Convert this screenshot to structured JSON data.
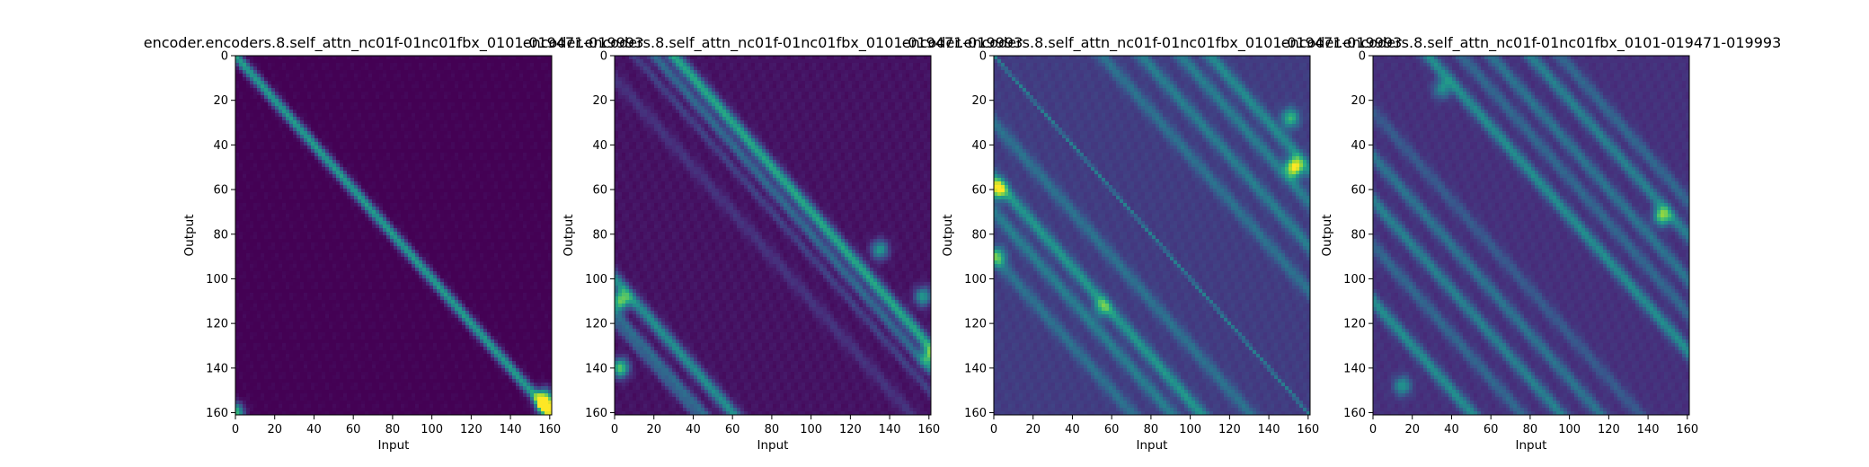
{
  "chart_data": [
    {
      "type": "heatmap",
      "title": "encoder.encoders.8.self_attn_nc01f-01nc01fbx_0101-019471-019993",
      "xlabel": "Input",
      "ylabel": "Output",
      "xlim": [
        0,
        161
      ],
      "ylim": [
        161,
        0
      ],
      "xticks": [
        "0",
        "20",
        "40",
        "60",
        "80",
        "100",
        "120",
        "140",
        "160"
      ],
      "yticks": [
        "0",
        "20",
        "40",
        "60",
        "80",
        "100",
        "120",
        "140",
        "160"
      ],
      "colormap": "viridis",
      "pattern": {
        "background": 0.0,
        "bands": [
          {
            "offset": 0,
            "weight": 0.55,
            "width": 2.5
          }
        ],
        "hotspots": [
          {
            "x": 158,
            "y": 157,
            "w": 0.9
          },
          {
            "x": 157,
            "y": 153,
            "w": 0.6
          },
          {
            "x": 0,
            "y": 160,
            "w": 0.7
          }
        ]
      }
    },
    {
      "type": "heatmap",
      "title": "encoder.encoders.8.self_attn_nc01f-01nc01fbx_0101-019471-019993",
      "xlabel": "Input",
      "ylabel": "Output",
      "xlim": [
        0,
        161
      ],
      "ylim": [
        161,
        0
      ],
      "xticks": [
        "0",
        "20",
        "40",
        "60",
        "80",
        "100",
        "120",
        "140",
        "160"
      ],
      "yticks": [
        "0",
        "20",
        "40",
        "60",
        "80",
        "100",
        "120",
        "140",
        "160"
      ],
      "colormap": "viridis",
      "pattern": {
        "background": 0.05,
        "bands": [
          {
            "offset": 30,
            "weight": 0.55,
            "width": 3
          },
          {
            "offset": 20,
            "weight": 0.3,
            "width": 2.5
          },
          {
            "offset": 10,
            "weight": 0.15,
            "width": 2
          },
          {
            "offset": -100,
            "weight": 0.45,
            "width": 3
          },
          {
            "offset": -115,
            "weight": 0.3,
            "width": 2.5
          },
          {
            "offset": -120,
            "weight": 0.2,
            "width": 2
          },
          {
            "offset": -10,
            "weight": 0.1,
            "width": 3
          }
        ],
        "hotspots": [
          {
            "x": 3,
            "y": 110,
            "w": 0.7
          },
          {
            "x": 3,
            "y": 140,
            "w": 0.7
          },
          {
            "x": 135,
            "y": 87,
            "w": 0.5
          },
          {
            "x": 157,
            "y": 108,
            "w": 0.5
          },
          {
            "x": 160,
            "y": 135,
            "w": 0.5
          }
        ]
      }
    },
    {
      "type": "heatmap",
      "title": "encoder.encoders.8.self_attn_nc01f-01nc01fbx_0101-019471-019993",
      "xlabel": "Input",
      "ylabel": "Output",
      "xlim": [
        0,
        161
      ],
      "ylim": [
        161,
        0
      ],
      "xticks": [
        "0",
        "20",
        "40",
        "60",
        "80",
        "100",
        "120",
        "140",
        "160"
      ],
      "yticks": [
        "0",
        "20",
        "40",
        "60",
        "80",
        "100",
        "120",
        "140",
        "160"
      ],
      "colormap": "viridis",
      "pattern": {
        "background": 0.18,
        "bands": [
          {
            "offset": 0,
            "weight": 0.25,
            "width": 0.8
          },
          {
            "offset": 110,
            "weight": 0.3,
            "width": 3
          },
          {
            "offset": 95,
            "weight": 0.25,
            "width": 3
          },
          {
            "offset": 75,
            "weight": 0.25,
            "width": 3
          },
          {
            "offset": 55,
            "weight": 0.2,
            "width": 3
          },
          {
            "offset": -55,
            "weight": 0.35,
            "width": 3
          },
          {
            "offset": -70,
            "weight": 0.25,
            "width": 3
          },
          {
            "offset": -30,
            "weight": 0.2,
            "width": 3
          },
          {
            "offset": -90,
            "weight": 0.2,
            "width": 3
          }
        ],
        "hotspots": [
          {
            "x": 2,
            "y": 60,
            "w": 0.7
          },
          {
            "x": 153,
            "y": 50,
            "w": 0.85
          },
          {
            "x": 151,
            "y": 28,
            "w": 0.5
          },
          {
            "x": 55,
            "y": 113,
            "w": 0.35
          },
          {
            "x": 2,
            "y": 90,
            "w": 0.45
          }
        ]
      }
    },
    {
      "type": "heatmap",
      "title": "encoder.encoders.8.self_attn_nc01f-01nc01fbx_0101-019471-019993",
      "xlabel": "Input",
      "ylabel": "Output",
      "xlim": [
        0,
        161
      ],
      "ylim": [
        161,
        0
      ],
      "xticks": [
        "0",
        "20",
        "40",
        "60",
        "80",
        "100",
        "120",
        "140",
        "160"
      ],
      "yticks": [
        "0",
        "20",
        "40",
        "60",
        "80",
        "100",
        "120",
        "140",
        "160"
      ],
      "colormap": "viridis",
      "pattern": {
        "background": 0.14,
        "bands": [
          {
            "offset": 28,
            "weight": 0.35,
            "width": 3
          },
          {
            "offset": 60,
            "weight": 0.25,
            "width": 3
          },
          {
            "offset": 80,
            "weight": 0.3,
            "width": 3
          },
          {
            "offset": 95,
            "weight": 0.2,
            "width": 3
          },
          {
            "offset": 45,
            "weight": 0.2,
            "width": 3
          },
          {
            "offset": -45,
            "weight": 0.25,
            "width": 3
          },
          {
            "offset": -65,
            "weight": 0.3,
            "width": 3
          },
          {
            "offset": -85,
            "weight": 0.2,
            "width": 3
          },
          {
            "offset": -110,
            "weight": 0.35,
            "width": 3
          },
          {
            "offset": -25,
            "weight": 0.15,
            "width": 3
          }
        ],
        "hotspots": [
          {
            "x": 147,
            "y": 72,
            "w": 0.6
          },
          {
            "x": 15,
            "y": 148,
            "w": 0.4
          },
          {
            "x": 35,
            "y": 15,
            "w": 0.35
          }
        ]
      }
    }
  ]
}
